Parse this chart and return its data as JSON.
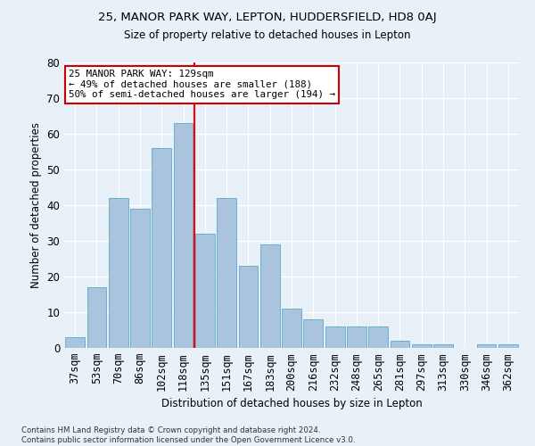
{
  "title1": "25, MANOR PARK WAY, LEPTON, HUDDERSFIELD, HD8 0AJ",
  "title2": "Size of property relative to detached houses in Lepton",
  "xlabel": "Distribution of detached houses by size in Lepton",
  "ylabel": "Number of detached properties",
  "bar_labels": [
    "37sqm",
    "53sqm",
    "70sqm",
    "86sqm",
    "102sqm",
    "118sqm",
    "135sqm",
    "151sqm",
    "167sqm",
    "183sqm",
    "200sqm",
    "216sqm",
    "232sqm",
    "248sqm",
    "265sqm",
    "281sqm",
    "297sqm",
    "313sqm",
    "330sqm",
    "346sqm",
    "362sqm"
  ],
  "bar_values": [
    3,
    17,
    42,
    39,
    56,
    63,
    32,
    42,
    23,
    29,
    11,
    8,
    6,
    6,
    6,
    2,
    1,
    1,
    0,
    1,
    1
  ],
  "bar_color": "#aac4de",
  "bar_edgecolor": "#6aafd4",
  "background_color": "#e8f0f8",
  "grid_color": "#ffffff",
  "annotation_text": "25 MANOR PARK WAY: 129sqm\n← 49% of detached houses are smaller (188)\n50% of semi-detached houses are larger (194) →",
  "annotation_box_color": "#ffffff",
  "annotation_box_edgecolor": "#cc0000",
  "footnote": "Contains HM Land Registry data © Crown copyright and database right 2024.\nContains public sector information licensed under the Open Government Licence v3.0.",
  "ylim": [
    0,
    80
  ],
  "yticks": [
    0,
    10,
    20,
    30,
    40,
    50,
    60,
    70,
    80
  ]
}
